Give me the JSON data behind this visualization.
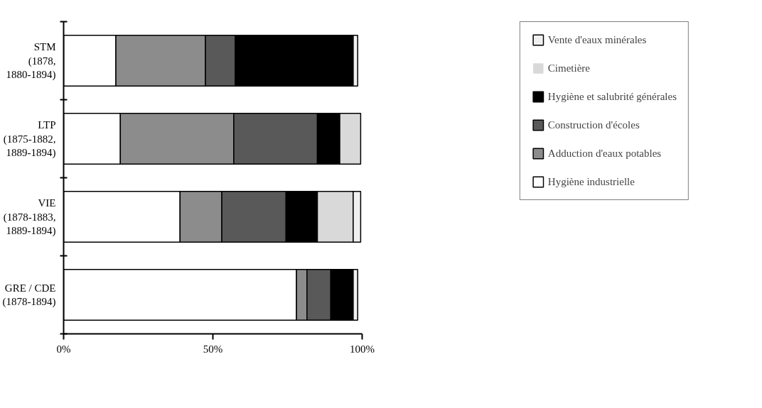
{
  "chart_data": {
    "type": "bar",
    "orientation": "horizontal",
    "stacked": true,
    "categories": [
      "STM (1878, 1880-1894)",
      "LTP (1875-1882, 1889-1894)",
      "VIE (1878-1883, 1889-1894)",
      "GRE / CDE (1878-1894)"
    ],
    "series": [
      {
        "name": "Hygiène industrielle",
        "color": "#ffffff",
        "values": [
          17.5,
          19,
          39,
          78
        ]
      },
      {
        "name": "Adduction d'eaux potables",
        "color": "#8c8c8c",
        "values": [
          30,
          38,
          14,
          3.5
        ]
      },
      {
        "name": "Construction d'écoles",
        "color": "#595959",
        "values": [
          10,
          28,
          21.5,
          8
        ]
      },
      {
        "name": "Hygiène et salubrité générales",
        "color": "#000000",
        "values": [
          39.5,
          7.5,
          10.5,
          7.5
        ]
      },
      {
        "name": "Cimetière",
        "color": "#d9d9d9",
        "values": [
          0,
          7,
          12,
          0
        ]
      },
      {
        "name": "Vente d'eaux minérales",
        "color": "#f0f0f0",
        "values": [
          1.5,
          0,
          2.5,
          1.5
        ]
      }
    ],
    "xlim": [
      0,
      100
    ],
    "xticks": [
      {
        "value": 0,
        "label": "0%"
      },
      {
        "value": 50,
        "label": "50%"
      },
      {
        "value": 100,
        "label": "100%"
      }
    ],
    "grid": false,
    "legend": "right"
  }
}
